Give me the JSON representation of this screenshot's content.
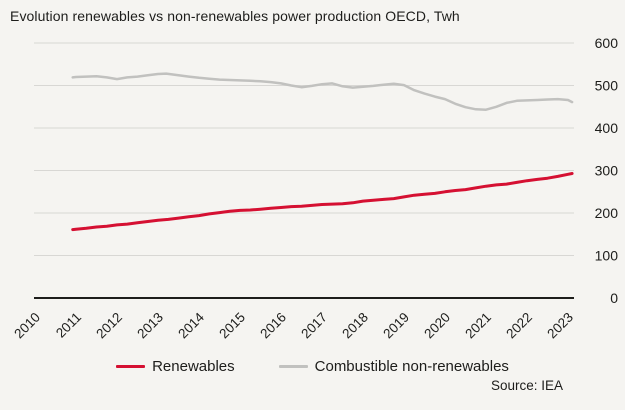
{
  "title": "Evolution renewables vs non-renewables power production OECD, Twh",
  "source": "Source: IEA",
  "colors": {
    "renewables": "#d51032",
    "non_renewables": "#c1c1bf",
    "gridline": "#d8d7d4",
    "axis": "#1d1d1b",
    "background": "#f5f4f1",
    "text": "#1d1d1b"
  },
  "legend": {
    "items": [
      {
        "label": "Renewables"
      },
      {
        "label": "Combustible non-renewables"
      }
    ]
  },
  "chart_data": {
    "type": "line",
    "title": "Evolution renewables vs non-renewables power production OECD, Twh",
    "xlabel": "",
    "ylabel": "Twh",
    "xlim": [
      2010,
      2023.2
    ],
    "ylim": [
      0,
      600
    ],
    "x_ticks": [
      2010,
      2011,
      2012,
      2013,
      2014,
      2015,
      2016,
      2017,
      2018,
      2019,
      2020,
      2021,
      2022,
      2023
    ],
    "y_ticks": [
      0,
      100,
      200,
      300,
      400,
      500,
      600
    ],
    "grid": true,
    "legend_position": "bottom",
    "series": [
      {
        "name": "Renewables",
        "color": "#d51032",
        "stroke_width": 3,
        "points": [
          [
            2010.92,
            161
          ],
          [
            2011.0,
            162
          ],
          [
            2011.25,
            164
          ],
          [
            2011.5,
            167
          ],
          [
            2011.75,
            169
          ],
          [
            2012.0,
            172
          ],
          [
            2012.25,
            174
          ],
          [
            2012.5,
            177
          ],
          [
            2012.75,
            180
          ],
          [
            2013.0,
            183
          ],
          [
            2013.25,
            185
          ],
          [
            2013.5,
            188
          ],
          [
            2013.75,
            191
          ],
          [
            2014.0,
            194
          ],
          [
            2014.25,
            198
          ],
          [
            2014.5,
            201
          ],
          [
            2014.75,
            204
          ],
          [
            2015.0,
            206
          ],
          [
            2015.25,
            207
          ],
          [
            2015.5,
            209
          ],
          [
            2015.75,
            211
          ],
          [
            2016.0,
            213
          ],
          [
            2016.25,
            215
          ],
          [
            2016.5,
            216
          ],
          [
            2016.75,
            218
          ],
          [
            2017.0,
            220
          ],
          [
            2017.25,
            221
          ],
          [
            2017.5,
            222
          ],
          [
            2017.75,
            224
          ],
          [
            2018.0,
            228
          ],
          [
            2018.25,
            230
          ],
          [
            2018.5,
            232
          ],
          [
            2018.75,
            234
          ],
          [
            2019.0,
            238
          ],
          [
            2019.25,
            242
          ],
          [
            2019.5,
            244
          ],
          [
            2019.75,
            246
          ],
          [
            2020.0,
            250
          ],
          [
            2020.25,
            253
          ],
          [
            2020.5,
            255
          ],
          [
            2020.75,
            259
          ],
          [
            2021.0,
            263
          ],
          [
            2021.25,
            266
          ],
          [
            2021.5,
            268
          ],
          [
            2021.75,
            272
          ],
          [
            2022.0,
            276
          ],
          [
            2022.25,
            279
          ],
          [
            2022.5,
            282
          ],
          [
            2022.75,
            286
          ],
          [
            2023.0,
            291
          ],
          [
            2023.1,
            293
          ]
        ]
      },
      {
        "name": "Combustible non-renewables",
        "color": "#c1c1bf",
        "stroke_width": 2.5,
        "points": [
          [
            2010.92,
            519
          ],
          [
            2011.0,
            520
          ],
          [
            2011.25,
            521
          ],
          [
            2011.5,
            522
          ],
          [
            2011.75,
            519
          ],
          [
            2012.0,
            515
          ],
          [
            2012.25,
            519
          ],
          [
            2012.5,
            521
          ],
          [
            2012.75,
            524
          ],
          [
            2013.0,
            527
          ],
          [
            2013.2,
            528
          ],
          [
            2013.5,
            524
          ],
          [
            2013.75,
            521
          ],
          [
            2014.0,
            518
          ],
          [
            2014.25,
            516
          ],
          [
            2014.5,
            514
          ],
          [
            2014.75,
            513
          ],
          [
            2015.0,
            512
          ],
          [
            2015.25,
            511
          ],
          [
            2015.5,
            510
          ],
          [
            2015.75,
            508
          ],
          [
            2016.0,
            505
          ],
          [
            2016.25,
            500
          ],
          [
            2016.5,
            496
          ],
          [
            2016.75,
            499
          ],
          [
            2017.0,
            503
          ],
          [
            2017.25,
            505
          ],
          [
            2017.5,
            498
          ],
          [
            2017.75,
            495
          ],
          [
            2018.0,
            497
          ],
          [
            2018.25,
            499
          ],
          [
            2018.5,
            502
          ],
          [
            2018.75,
            504
          ],
          [
            2019.0,
            501
          ],
          [
            2019.25,
            489
          ],
          [
            2019.5,
            481
          ],
          [
            2019.75,
            474
          ],
          [
            2020.0,
            468
          ],
          [
            2020.25,
            457
          ],
          [
            2020.5,
            449
          ],
          [
            2020.75,
            444
          ],
          [
            2021.0,
            443
          ],
          [
            2021.25,
            450
          ],
          [
            2021.5,
            459
          ],
          [
            2021.75,
            464
          ],
          [
            2022.0,
            465
          ],
          [
            2022.25,
            466
          ],
          [
            2022.5,
            467
          ],
          [
            2022.75,
            468
          ],
          [
            2023.0,
            466
          ],
          [
            2023.1,
            461
          ]
        ]
      }
    ]
  }
}
